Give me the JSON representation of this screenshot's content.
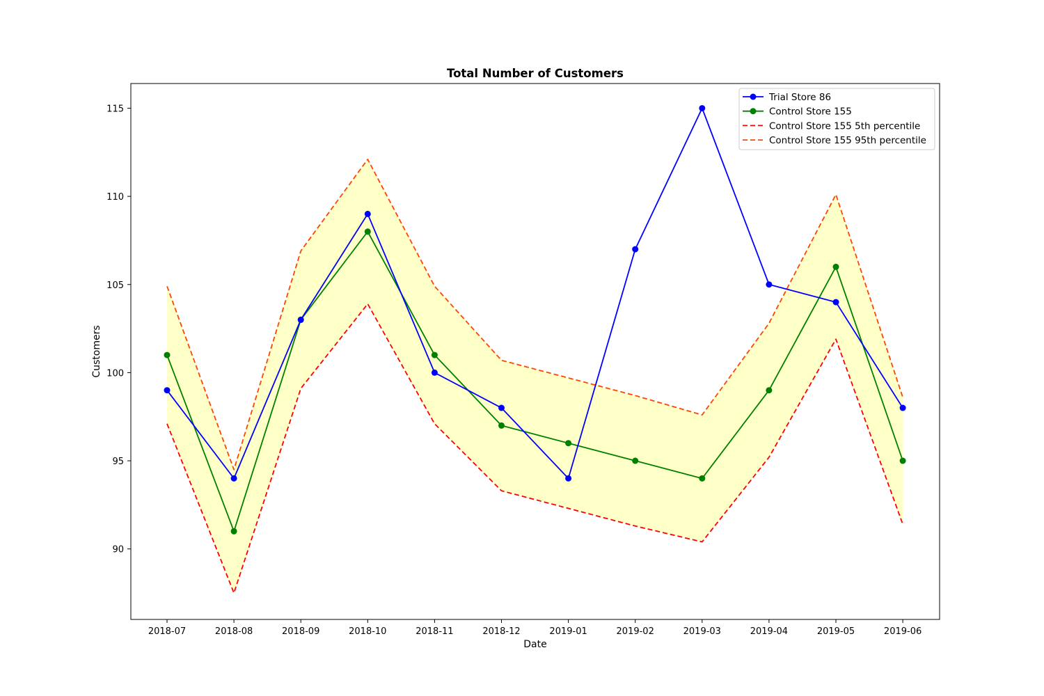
{
  "chart_data": {
    "type": "line",
    "title": "Total Number of Customers",
    "xlabel": "Date",
    "ylabel": "Customers",
    "categories": [
      "2018-07",
      "2018-08",
      "2018-09",
      "2018-10",
      "2018-11",
      "2018-12",
      "2019-01",
      "2019-02",
      "2019-03",
      "2019-04",
      "2019-05",
      "2019-06"
    ],
    "ylim": [
      86.0,
      116.4
    ],
    "yticks": [
      90,
      95,
      100,
      105,
      110,
      115
    ],
    "grid": false,
    "legend_position": "top-right",
    "shaded_band": {
      "color": "#ffffc8",
      "between": [
        "Control Store 155 5th percentile",
        "Control Store 155 95th percentile"
      ]
    },
    "series": [
      {
        "name": "Trial Store 86",
        "color": "#0000ff",
        "style": "solid",
        "marker": "circle",
        "values": [
          99,
          94,
          103,
          109,
          100,
          98,
          94,
          107,
          115,
          105,
          104,
          98
        ]
      },
      {
        "name": "Control Store 155",
        "color": "#008000",
        "style": "solid",
        "marker": "circle",
        "values": [
          101,
          91,
          103,
          108,
          101,
          97,
          96,
          95,
          94,
          99,
          106,
          95
        ]
      },
      {
        "name": "Control Store 155 5th percentile",
        "color": "#ff0000",
        "style": "dashed",
        "marker": "none",
        "values": [
          97.1,
          87.5,
          99.1,
          103.9,
          97.1,
          93.3,
          92.3,
          91.3,
          90.4,
          95.2,
          101.9,
          91.4
        ]
      },
      {
        "name": "Control Store 155 95th percentile",
        "color": "#ff4500",
        "style": "dashed",
        "marker": "none",
        "values": [
          104.9,
          94.5,
          106.9,
          112.1,
          104.9,
          100.7,
          99.7,
          98.7,
          97.6,
          102.8,
          110.1,
          98.6
        ]
      }
    ]
  }
}
